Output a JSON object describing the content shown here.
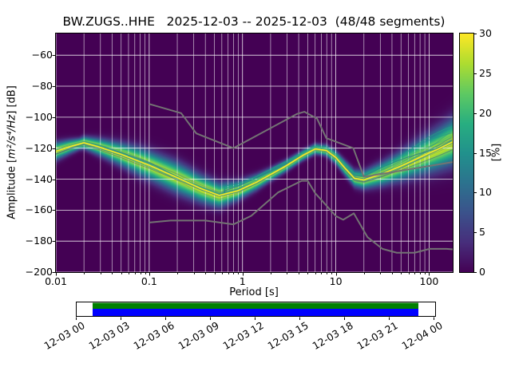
{
  "title": "BW.ZUGS..HHE   2025-12-03 -- 2025-12-03  (48/48 segments)",
  "chart_data": {
    "type": "heatmap",
    "title": "BW.ZUGS..HHE   2025-12-03 -- 2025-12-03  (48/48 segments)",
    "station_id": "BW.ZUGS..HHE",
    "date_start": "2025-12-03",
    "date_end": "2025-12-03",
    "segments_used": 48,
    "segments_total": 48,
    "xlabel": "Period [s]",
    "ylabel": "Amplitude [m²/s⁴/Hz] [dB]",
    "ylabel_prefix": "Amplitude [",
    "ylabel_math": "m²/s⁴/Hz",
    "ylabel_suffix": "] [dB]",
    "xscale": "log",
    "xlim": [
      0.01,
      179
    ],
    "ylim": [
      -200,
      -46
    ],
    "xticks": [
      0.01,
      0.1,
      1,
      10,
      100
    ],
    "yticks": [
      -60,
      -80,
      -100,
      -120,
      -140,
      -160,
      -180,
      -200
    ],
    "grid": true,
    "grid_color": "#ffffff",
    "background_color": "#440154",
    "colorbar": {
      "label": "[%]",
      "min": 0,
      "max": 30,
      "ticks": [
        0,
        5,
        10,
        15,
        20,
        25,
        30
      ],
      "colormap": "viridis",
      "position": "right"
    },
    "viridis_stops": [
      [
        0,
        "#440154"
      ],
      [
        0.125,
        "#472d7b"
      ],
      [
        0.25,
        "#3b528b"
      ],
      [
        0.375,
        "#2c728e"
      ],
      [
        0.5,
        "#21918c"
      ],
      [
        0.625,
        "#28ae80"
      ],
      [
        0.75,
        "#5ec962"
      ],
      [
        0.875,
        "#addc30"
      ],
      [
        1,
        "#fde725"
      ]
    ],
    "psd_mode_curve": {
      "log10_period": [
        -2.0,
        -1.85,
        -1.7,
        -1.55,
        -1.3,
        -1.0,
        -0.7,
        -0.45,
        -0.25,
        -0.05,
        0.15,
        0.45,
        0.65,
        0.78,
        0.9,
        1.0,
        1.1,
        1.2,
        1.3,
        1.5,
        1.7,
        1.9,
        2.1,
        2.25
      ],
      "db": [
        -122,
        -119,
        -116.5,
        -119,
        -124,
        -131,
        -139,
        -146,
        -150.5,
        -147.5,
        -142,
        -132,
        -124.5,
        -120.5,
        -121.5,
        -126,
        -133,
        -139.5,
        -140.5,
        -136.5,
        -131.5,
        -126,
        -120.5,
        -116
      ],
      "peak_percent": 28
    },
    "psd_spread_sigma_db": {
      "log10_period": [
        -2.0,
        -1.75,
        -1.5,
        -1.1,
        -0.7,
        -0.3,
        0.0,
        0.3,
        0.6,
        0.85,
        1.0,
        1.15,
        1.3,
        1.6,
        1.9,
        2.25
      ],
      "sigma": [
        3.5,
        2.2,
        3.5,
        5.5,
        6.0,
        5.0,
        3.5,
        2.5,
        2.0,
        2.0,
        2.5,
        3.0,
        3.5,
        5.0,
        7.0,
        9.0
      ]
    },
    "noise_models": {
      "color": "#737373",
      "high_noise_model": {
        "period_s": [
          0.1,
          0.22,
          0.32,
          0.8,
          3.8,
          4.6,
          6.3,
          7.9,
          15.4,
          20.0,
          179.0
        ],
        "db": [
          -91.5,
          -97.4,
          -110.5,
          -120.0,
          -98.0,
          -96.5,
          -101.0,
          -113.5,
          -120.0,
          -138.5,
          -129.0
        ]
      },
      "low_noise_model": {
        "period_s": [
          0.1,
          0.17,
          0.4,
          0.8,
          1.24,
          2.4,
          4.3,
          5.0,
          6.0,
          10.0,
          12.0,
          15.6,
          21.9,
          31.6,
          45.0,
          70.0,
          101.0,
          154.0,
          179.0
        ],
        "db": [
          -168.0,
          -166.7,
          -166.7,
          -169.2,
          -163.7,
          -148.6,
          -141.1,
          -141.1,
          -149.0,
          -163.8,
          -166.2,
          -162.1,
          -177.5,
          -185.0,
          -187.5,
          -187.5,
          -185.0,
          -185.0,
          -185.3
        ]
      }
    }
  },
  "timeline": {
    "tick_labels": [
      "12-03 00",
      "12-03 03",
      "12-03 06",
      "12-03 09",
      "12-03 12",
      "12-03 15",
      "12-03 18",
      "12-03 21",
      "12-04 00"
    ],
    "box_color": "#ffffff",
    "coverage_top_color": "#008000",
    "coverage_bottom_color": "#0000ff"
  }
}
